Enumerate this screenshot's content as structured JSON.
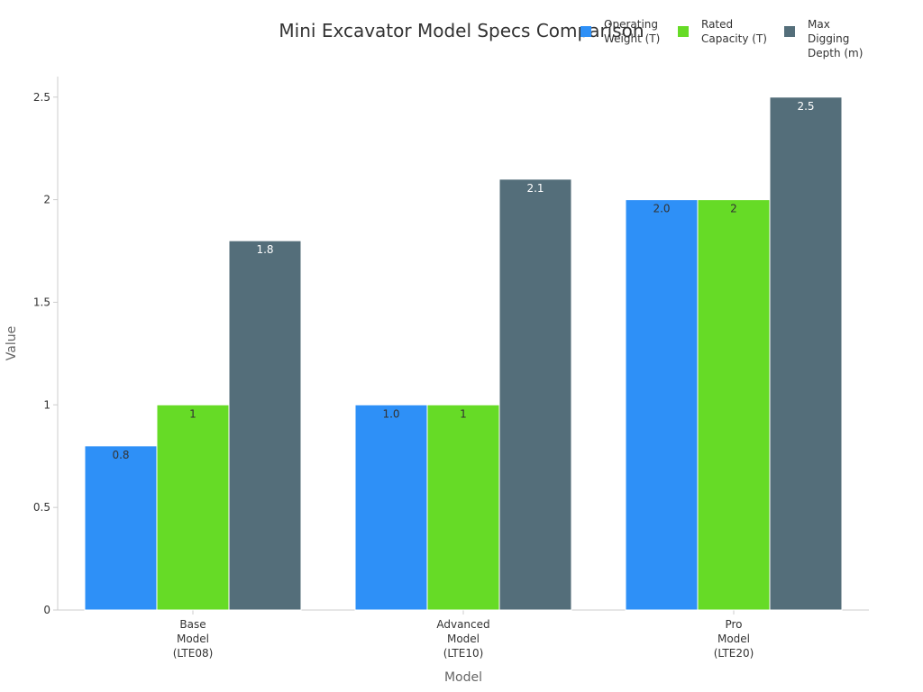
{
  "chart_data": {
    "type": "bar",
    "title": "Mini Excavator Model Specs Comparison",
    "xlabel": "Model",
    "ylabel": "Value",
    "categories": [
      [
        "Base",
        "Model",
        "(LTE08)"
      ],
      [
        "Advanced",
        "Model",
        "(LTE10)"
      ],
      [
        "Pro",
        "Model",
        "(LTE20)"
      ]
    ],
    "series": [
      {
        "name": [
          "Operating",
          "Weight (T)"
        ],
        "color": "#2E90F7",
        "values": [
          0.8,
          1.0,
          2.0
        ],
        "labels": [
          "0.8",
          "1.0",
          "2.0"
        ],
        "label_color": "#333333"
      },
      {
        "name": [
          "Rated",
          "Capacity (T)"
        ],
        "color": "#66DB26",
        "values": [
          1,
          1,
          2
        ],
        "labels": [
          "1",
          "1",
          "2"
        ],
        "label_color": "#333333"
      },
      {
        "name": [
          "Max",
          "Digging",
          "Depth (m)"
        ],
        "color": "#546E7A",
        "values": [
          1.8,
          2.1,
          2.5
        ],
        "labels": [
          "1.8",
          "2.1",
          "2.5"
        ],
        "label_color": "#ffffff"
      }
    ],
    "ylim": [
      0,
      2.6
    ],
    "yticks": [
      0,
      0.5,
      1,
      1.5,
      2,
      2.5
    ],
    "ytick_labels": [
      "0",
      "0.5",
      "1",
      "1.5",
      "2",
      "2.5"
    ],
    "legend_position": "top-right",
    "grid": false
  }
}
